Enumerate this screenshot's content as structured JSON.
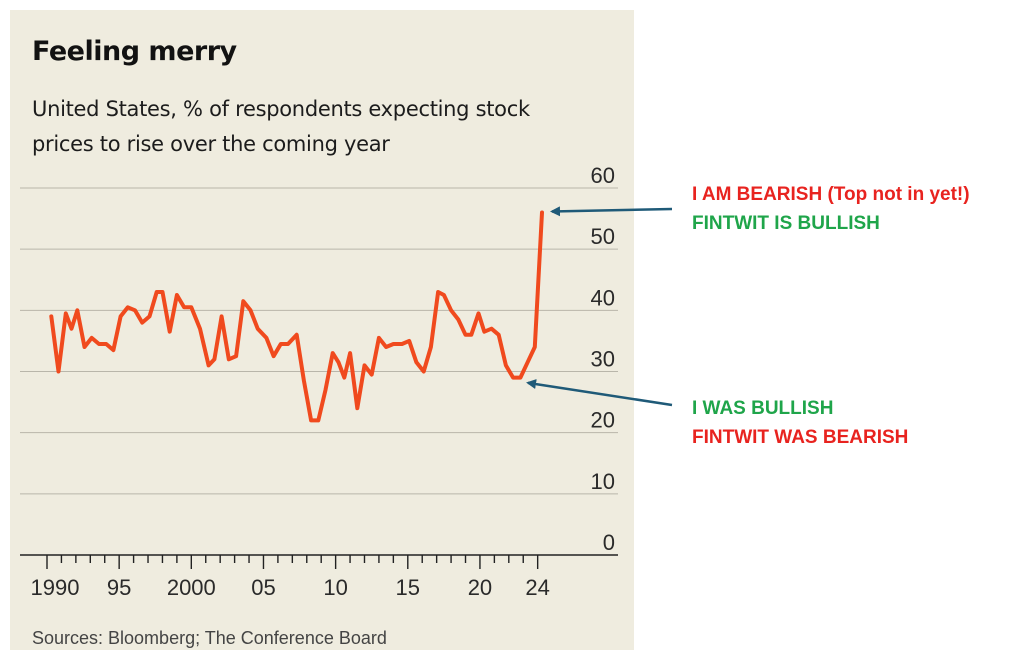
{
  "chart_data": {
    "type": "line",
    "title": "Feeling merry",
    "subtitle": "United States, % of respondents expecting stock prices to rise over the coming year",
    "source": "Sources: Bloomberg; The Conference Board",
    "xlabel": "",
    "ylabel": "",
    "xlim": [
      1990,
      2025
    ],
    "ylim": [
      0,
      60
    ],
    "yticks": [
      0,
      10,
      20,
      30,
      40,
      50,
      60
    ],
    "xtick_labels": [
      {
        "x": 1990,
        "label": "1990"
      },
      {
        "x": 1995,
        "label": "95"
      },
      {
        "x": 2000,
        "label": "2000"
      },
      {
        "x": 2005,
        "label": "05"
      },
      {
        "x": 2010,
        "label": "10"
      },
      {
        "x": 2015,
        "label": "15"
      },
      {
        "x": 2020,
        "label": "20"
      },
      {
        "x": 2024,
        "label": "24"
      }
    ],
    "grid": true,
    "line_color": "#f04a1e",
    "series": [
      {
        "x": [
          1990.3,
          1990.8,
          1991.3,
          1991.7,
          1992.1,
          1992.6,
          1993.1,
          1993.6,
          1994.1,
          1994.6,
          1995.1,
          1995.6,
          1996.1,
          1996.6,
          1997.1,
          1997.6,
          1998.0,
          1998.5,
          1999.0,
          1999.5,
          2000.0,
          2000.6,
          2001.2,
          2001.6,
          2002.1,
          2002.6,
          2003.1,
          2003.6,
          2004.1,
          2004.6,
          2005.2,
          2005.7,
          2006.2,
          2006.7,
          2007.3,
          2007.8,
          2008.3,
          2008.8,
          2009.3,
          2009.8,
          2010.2,
          2010.6,
          2011.0,
          2011.5,
          2012.0,
          2012.5,
          2013.0,
          2013.5,
          2014.0,
          2014.6,
          2015.1,
          2015.6,
          2016.1,
          2016.6,
          2017.1,
          2017.5,
          2018.0,
          2018.5,
          2019.0,
          2019.4,
          2019.9,
          2020.3,
          2020.8,
          2021.3,
          2021.8,
          2022.3,
          2022.8,
          2023.3,
          2023.8,
          2024.3
        ],
        "values": [
          39,
          30,
          39.5,
          37,
          40,
          34,
          35.5,
          34.5,
          34.5,
          33.5,
          39,
          40.5,
          40,
          38,
          39,
          43,
          43,
          36.5,
          42.5,
          40.5,
          40.5,
          37,
          31,
          32,
          39,
          32,
          32.5,
          41.5,
          40,
          37,
          35.5,
          32.5,
          34.5,
          34.5,
          36,
          28.5,
          22,
          22,
          27,
          33,
          31.5,
          29,
          33,
          24,
          31,
          29.5,
          35.5,
          34,
          34.5,
          34.5,
          35,
          31.5,
          30,
          34,
          43,
          42.5,
          40,
          38.5,
          36,
          36,
          39.5,
          36.5,
          37,
          36,
          31,
          29,
          29,
          31.5,
          34,
          56
        ]
      }
    ]
  },
  "annotations": {
    "top_line1": "I AM BEARISH (Top not in yet!)",
    "top_line2": "FINTWIT IS BULLISH",
    "bottom_line1": "I WAS BULLISH",
    "bottom_line2": "FINTWIT WAS BEARISH",
    "arrow_color": "#1f5a78",
    "top_point": {
      "x": 2024.3,
      "y": 56
    },
    "bottom_point": {
      "x": 2022.5,
      "y": 28.8
    }
  }
}
